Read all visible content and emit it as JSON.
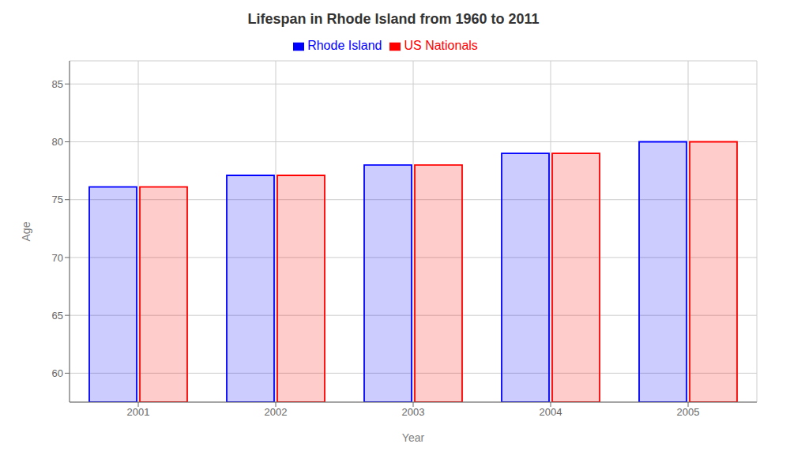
{
  "chart_data": {
    "type": "bar",
    "title": "Lifespan in Rhode Island from 1960 to 2011",
    "xlabel": "Year",
    "ylabel": "Age",
    "categories": [
      "2001",
      "2002",
      "2003",
      "2004",
      "2005"
    ],
    "series": [
      {
        "name": "Rhode Island",
        "color": "#0000ff",
        "values": [
          76.1,
          77.1,
          78.0,
          79.0,
          80.0
        ]
      },
      {
        "name": "US Nationals",
        "color": "#ff0000",
        "values": [
          76.1,
          77.1,
          78.0,
          79.0,
          80.0
        ]
      }
    ],
    "ylim": [
      57.5,
      87
    ],
    "yticks": [
      60,
      65,
      70,
      75,
      80,
      85
    ],
    "grid": true,
    "legend": "top"
  }
}
